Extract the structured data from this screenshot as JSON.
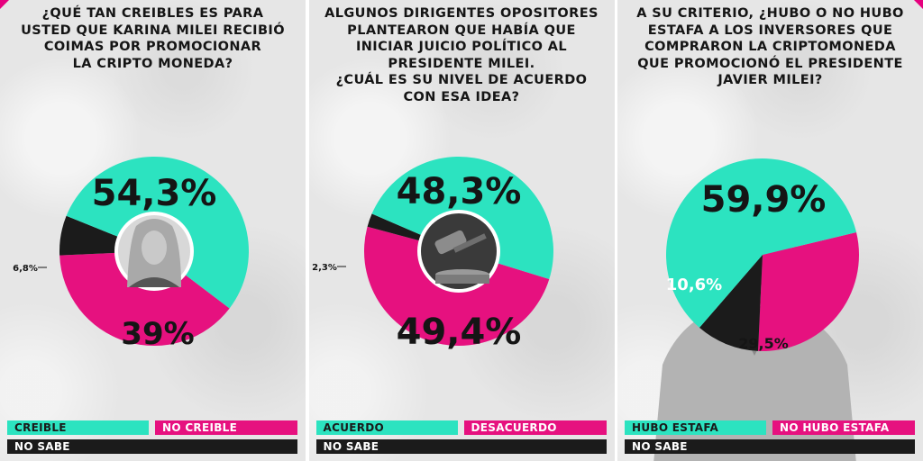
{
  "colors": {
    "teal": "#2ce3c0",
    "pink": "#e6117f",
    "dark": "#1b1b1b",
    "background": "#e6e6e6"
  },
  "chart_data": [
    {
      "type": "pie",
      "title": "¿QUÉ TAN CREIBLES ES PARA\nUSTED QUE KARINA MILEI RECIBIÓ\nCOIMAS POR PROMOCIONAR\nLA CRIPTO MONEDA?",
      "categories": [
        "CREIBLE",
        "NO CREIBLE",
        "NO SABE"
      ],
      "values": [
        54.3,
        39,
        6.8
      ],
      "labels": [
        "54,3%",
        "39%",
        "6,8%"
      ],
      "legend": "bottom",
      "center_image": "woman-portrait"
    },
    {
      "type": "pie",
      "title": "ALGUNOS DIRIGENTES OPOSITORES\nPLANTEARON QUE HABÍA QUE\nINICIAR JUICIO POLÍTICO AL\nPRESIDENTE MILEI.\n¿CUÁL ES SU NIVEL DE ACUERDO\nCON ESA IDEA?",
      "categories": [
        "ACUERDO",
        "DESACUERDO",
        "NO SABE"
      ],
      "values": [
        48.3,
        49.4,
        2.3
      ],
      "labels": [
        "48,3%",
        "49,4%",
        "2,3%"
      ],
      "legend": "bottom",
      "center_image": "gavel"
    },
    {
      "type": "pie",
      "title": "A SU CRITERIO, ¿HUBO O NO HUBO\nESTAFA A LOS INVERSORES QUE\nCOMPRARON LA CRIPTOMONEDA\nQUE PROMOCIONÓ EL PRESIDENTE\nJAVIER MILEI?",
      "categories": [
        "HUBO ESTAFA",
        "NO HUBO ESTAFA",
        "NO SABE"
      ],
      "values": [
        59.9,
        29.5,
        10.6
      ],
      "labels": [
        "59,9%",
        "29,5%",
        "10,6%"
      ],
      "legend": "bottom",
      "center_image": "man-portrait-background"
    }
  ]
}
